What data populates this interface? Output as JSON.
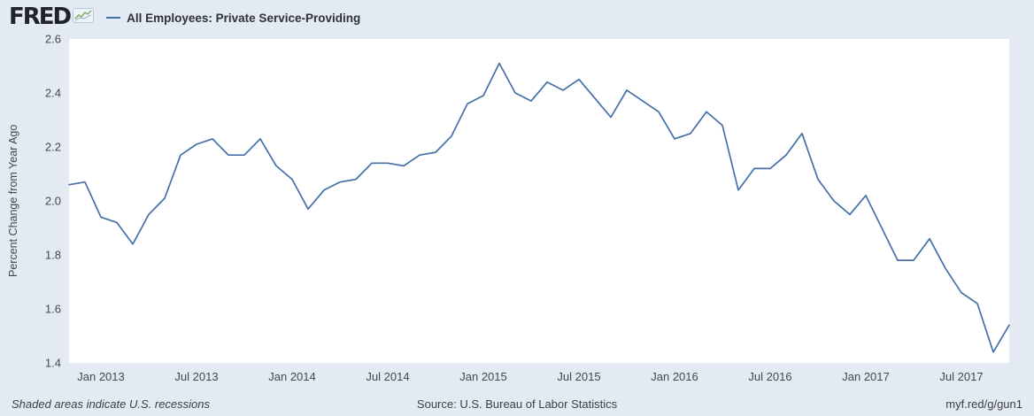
{
  "header": {
    "logo_text": "FRED",
    "series_label": "All Employees: Private Service-Providing"
  },
  "footer": {
    "note": "Shaded areas indicate U.S. recessions",
    "source": "Source: U.S. Bureau of Labor Statistics",
    "link": "myf.red/g/gun1"
  },
  "colors": {
    "background": "#e3eaf2",
    "plot_background": "#ffffff",
    "line": "#4470a8",
    "axis_text": "#43484f"
  },
  "chart_data": {
    "type": "line",
    "title": "All Employees: Private Service-Providing",
    "ylabel": "Percent Change from Year Ago",
    "ylim": [
      1.4,
      2.6
    ],
    "yticks": [
      1.4,
      1.6,
      1.8,
      2.0,
      2.2,
      2.4,
      2.6
    ],
    "xticks": [
      "Jan 2013",
      "Jul 2013",
      "Jan 2014",
      "Jul 2014",
      "Jan 2015",
      "Jul 2015",
      "Jan 2016",
      "Jul 2016",
      "Jan 2017",
      "Jul 2017"
    ],
    "xtick_indices": [
      2,
      8,
      14,
      20,
      26,
      32,
      38,
      44,
      50,
      56
    ],
    "grid": false,
    "legend_position": "top-header",
    "line_color": "#4470a8",
    "x": [
      "2012-11",
      "2012-12",
      "2013-01",
      "2013-02",
      "2013-03",
      "2013-04",
      "2013-05",
      "2013-06",
      "2013-07",
      "2013-08",
      "2013-09",
      "2013-10",
      "2013-11",
      "2013-12",
      "2014-01",
      "2014-02",
      "2014-03",
      "2014-04",
      "2014-05",
      "2014-06",
      "2014-07",
      "2014-08",
      "2014-09",
      "2014-10",
      "2014-11",
      "2014-12",
      "2015-01",
      "2015-02",
      "2015-03",
      "2015-04",
      "2015-05",
      "2015-06",
      "2015-07",
      "2015-08",
      "2015-09",
      "2015-10",
      "2015-11",
      "2015-12",
      "2016-01",
      "2016-02",
      "2016-03",
      "2016-04",
      "2016-05",
      "2016-06",
      "2016-07",
      "2016-08",
      "2016-09",
      "2016-10",
      "2016-11",
      "2016-12",
      "2017-01",
      "2017-02",
      "2017-03",
      "2017-04",
      "2017-05",
      "2017-06",
      "2017-07",
      "2017-08",
      "2017-09",
      "2017-10"
    ],
    "values": [
      2.06,
      2.07,
      1.94,
      1.92,
      1.84,
      1.95,
      2.01,
      2.17,
      2.21,
      2.23,
      2.17,
      2.17,
      2.23,
      2.13,
      2.08,
      1.97,
      2.04,
      2.07,
      2.08,
      2.14,
      2.14,
      2.13,
      2.17,
      2.18,
      2.24,
      2.36,
      2.39,
      2.51,
      2.4,
      2.37,
      2.44,
      2.41,
      2.45,
      2.38,
      2.31,
      2.41,
      2.37,
      2.33,
      2.23,
      2.25,
      2.33,
      2.28,
      2.04,
      2.12,
      2.12,
      2.17,
      2.25,
      2.08,
      2.0,
      1.95,
      2.02,
      1.9,
      1.78,
      1.78,
      1.86,
      1.75,
      1.66,
      1.62,
      1.44,
      1.54
    ]
  }
}
